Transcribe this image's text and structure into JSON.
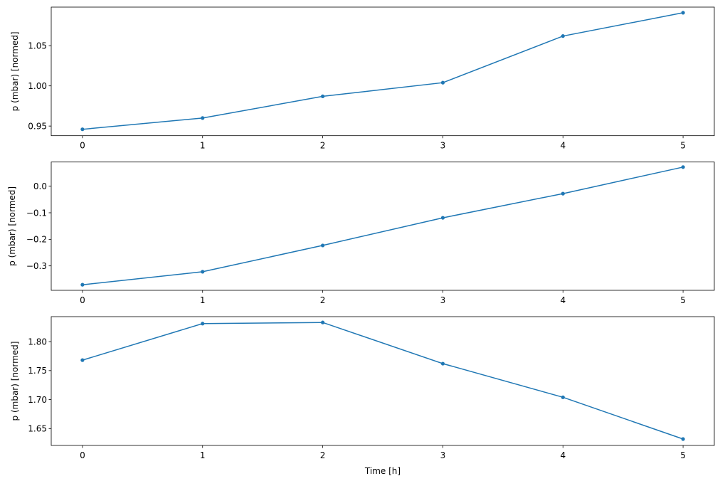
{
  "chart_data": [
    {
      "type": "line",
      "x": [
        0,
        1,
        2,
        3,
        4,
        5
      ],
      "y": [
        0.946,
        0.96,
        0.987,
        1.004,
        1.062,
        1.091
      ],
      "xlim": [
        -0.26,
        5.26
      ],
      "ylim": [
        0.938,
        1.098
      ],
      "yticks": [
        0.95,
        1.0,
        1.05
      ],
      "ytick_labels": [
        "0.95",
        "1.00",
        "1.05"
      ],
      "xticks": [
        0,
        1,
        2,
        3,
        4,
        5
      ],
      "xtick_labels": [
        "0",
        "1",
        "2",
        "3",
        "4",
        "5"
      ],
      "xlabel": "",
      "ylabel": "p (mbar) [normed]",
      "color": "#1f77b4",
      "marker": "dot",
      "grid": false
    },
    {
      "type": "line",
      "x": [
        0,
        1,
        2,
        3,
        4,
        5
      ],
      "y": [
        -0.371,
        -0.322,
        -0.223,
        -0.119,
        -0.028,
        0.072
      ],
      "xlim": [
        -0.26,
        5.26
      ],
      "ylim": [
        -0.392,
        0.091
      ],
      "yticks": [
        -0.3,
        -0.2,
        -0.1,
        0.0
      ],
      "ytick_labels": [
        "−0.3",
        "−0.2",
        "−0.1",
        "0.0"
      ],
      "xticks": [
        0,
        1,
        2,
        3,
        4,
        5
      ],
      "xtick_labels": [
        "0",
        "1",
        "2",
        "3",
        "4",
        "5"
      ],
      "xlabel": "",
      "ylabel": "p (mbar) [normed]",
      "color": "#1f77b4",
      "marker": "dot",
      "grid": false
    },
    {
      "type": "line",
      "x": [
        0,
        1,
        2,
        3,
        4,
        5
      ],
      "y": [
        1.768,
        1.831,
        1.833,
        1.762,
        1.704,
        1.632
      ],
      "xlim": [
        -0.26,
        5.26
      ],
      "ylim": [
        1.621,
        1.843
      ],
      "yticks": [
        1.65,
        1.7,
        1.75,
        1.8
      ],
      "ytick_labels": [
        "1.65",
        "1.70",
        "1.75",
        "1.80"
      ],
      "xticks": [
        0,
        1,
        2,
        3,
        4,
        5
      ],
      "xtick_labels": [
        "0",
        "1",
        "2",
        "3",
        "4",
        "5"
      ],
      "xlabel": "Time [h]",
      "ylabel": "p (mbar) [normed]",
      "color": "#1f77b4",
      "marker": "dot",
      "grid": false
    }
  ]
}
